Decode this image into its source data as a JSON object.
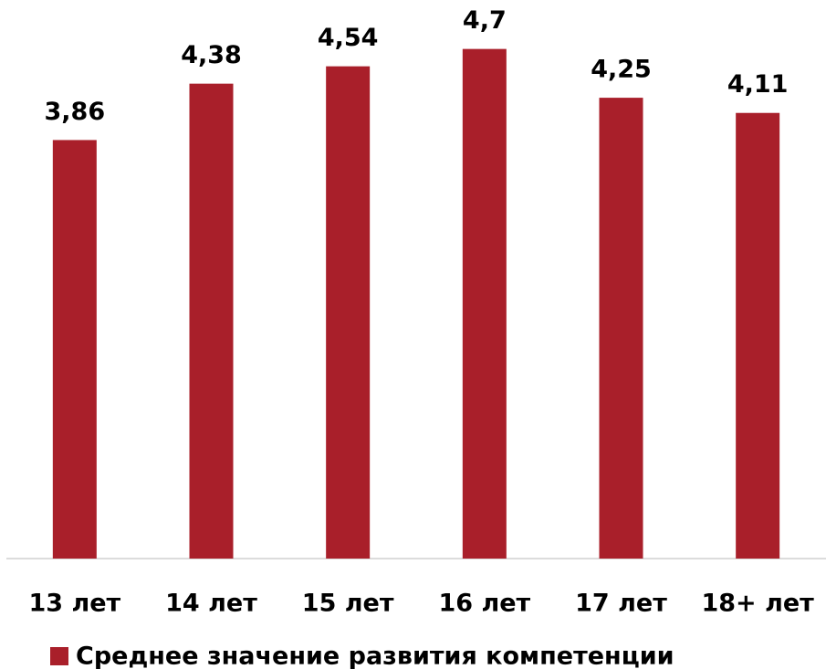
{
  "chart_data": {
    "type": "bar",
    "categories": [
      "13 лет",
      "14 лет",
      "15 лет",
      "16 лет",
      "17 лет",
      "18+ лет"
    ],
    "series": [
      {
        "name": "Среднее значение развития компетенции",
        "color": "#a91f2a",
        "values": [
          3.86,
          4.38,
          4.54,
          4.7,
          4.25,
          4.11
        ],
        "value_labels": [
          "3,86",
          "4,38",
          "4,54",
          "4,7",
          "4,25",
          "4,11"
        ]
      }
    ],
    "ylim": [
      0,
      5
    ],
    "legend": "bottom"
  }
}
